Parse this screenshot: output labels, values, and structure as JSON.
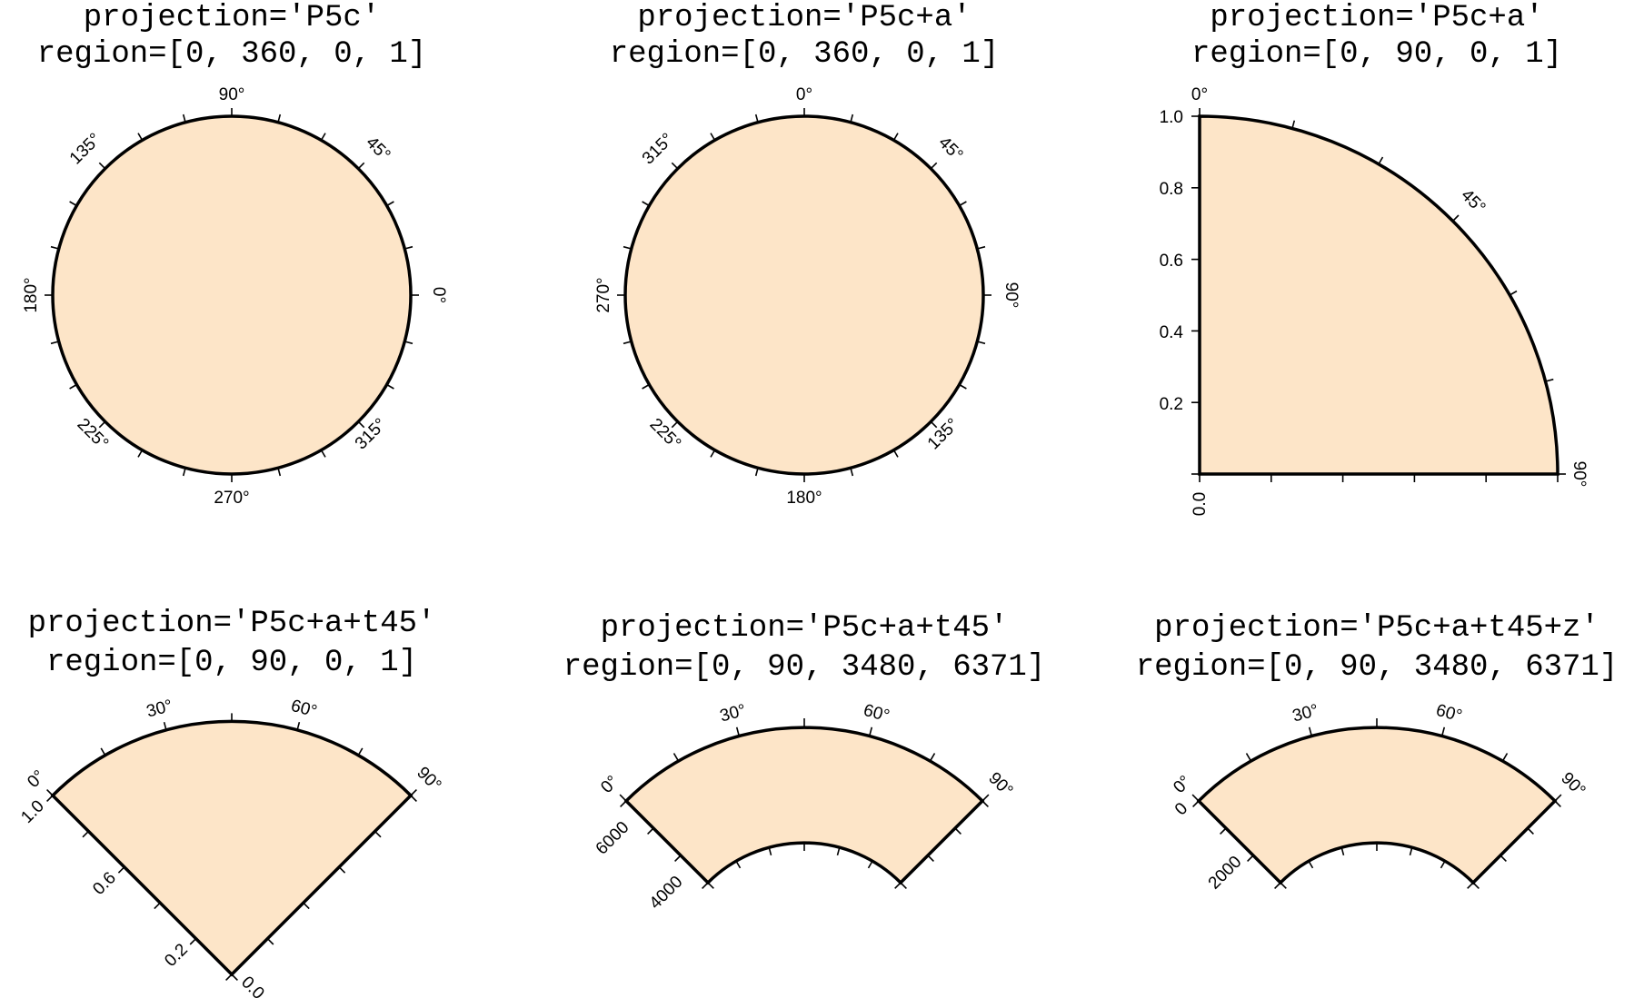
{
  "figure": {
    "fill_color": "#fde5c8",
    "outline_color": "#000000"
  },
  "panels": [
    {
      "title_line1": "projection='P5c'",
      "title_line2": "region=[0, 360, 0, 1]",
      "theta_range": [
        0,
        360
      ],
      "r_range": [
        0,
        1
      ],
      "theta_zero_direction": "east",
      "theta_direction": "counter-clockwise",
      "theta_labels": [
        "0°",
        "45°",
        "90°",
        "135°",
        "180°",
        "225°",
        "270°",
        "315°"
      ],
      "r_labels": []
    },
    {
      "title_line1": "projection='P5c+a'",
      "title_line2": "region=[0, 360, 0, 1]",
      "theta_range": [
        0,
        360
      ],
      "r_range": [
        0,
        1
      ],
      "theta_zero_direction": "north",
      "theta_direction": "clockwise",
      "theta_labels": [
        "0°",
        "45°",
        "90°",
        "135°",
        "180°",
        "225°",
        "270°",
        "315°"
      ],
      "r_labels": []
    },
    {
      "title_line1": "projection='P5c+a'",
      "title_line2": "region=[0, 90, 0, 1]",
      "theta_range": [
        0,
        90
      ],
      "r_range": [
        0,
        1
      ],
      "theta_zero_direction": "north",
      "theta_direction": "clockwise",
      "theta_labels": [
        "0°",
        "45°",
        "90°"
      ],
      "r_labels": [
        "0.0",
        "0.2",
        "0.4",
        "0.6",
        "0.8",
        "1.0"
      ]
    },
    {
      "title_line1": "projection='P5c+a+t45'",
      "title_line2": "region=[0, 90, 0, 1]",
      "theta_range": [
        0,
        90
      ],
      "r_range": [
        0,
        1
      ],
      "rotation_deg": 45,
      "theta_direction": "clockwise",
      "theta_labels": [
        "0°",
        "30°",
        "60°",
        "90°"
      ],
      "r_labels": [
        "0.0",
        "0.2",
        "0.6",
        "1.0"
      ]
    },
    {
      "title_line1": "projection='P5c+a+t45'",
      "title_line2": "region=[0, 90, 3480, 6371]",
      "theta_range": [
        0,
        90
      ],
      "r_range": [
        3480,
        6371
      ],
      "rotation_deg": 45,
      "theta_direction": "clockwise",
      "theta_labels": [
        "0°",
        "30°",
        "60°",
        "90°"
      ],
      "r_labels": [
        "4000",
        "6000"
      ]
    },
    {
      "title_line1": "projection='P5c+a+t45+z'",
      "title_line2": "region=[0, 90, 3480, 6371]",
      "theta_range": [
        0,
        90
      ],
      "r_range": [
        3480,
        6371
      ],
      "rotation_deg": 45,
      "theta_direction": "clockwise",
      "radius_as_depth": true,
      "theta_labels": [
        "0°",
        "30°",
        "60°",
        "90°"
      ],
      "r_labels": [
        "0",
        "2000"
      ]
    }
  ]
}
